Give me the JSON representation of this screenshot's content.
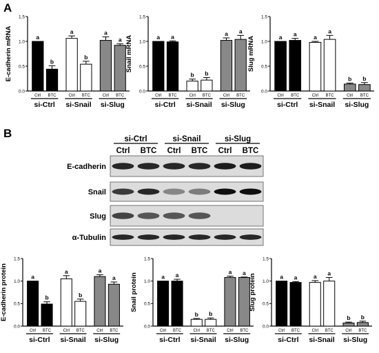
{
  "panel_labels": {
    "a": "A",
    "b": "B"
  },
  "blot": {
    "groups": [
      "si-Ctrl",
      "si-Snail",
      "si-Slug"
    ],
    "lanes": [
      "Ctrl",
      "BTC",
      "Ctrl",
      "BTC",
      "Ctrl",
      "BTC"
    ],
    "rows": [
      "E-cadherin",
      "Snail",
      "Slug",
      "α-Tubulin"
    ],
    "intensity": [
      [
        0.85,
        0.85,
        0.85,
        0.85,
        0.9,
        0.9
      ],
      [
        0.75,
        0.85,
        0.35,
        0.4,
        0.98,
        0.98
      ],
      [
        0.7,
        0.6,
        0.6,
        0.6,
        0.05,
        0.05
      ],
      [
        0.85,
        0.85,
        0.85,
        0.85,
        0.85,
        0.85
      ]
    ]
  },
  "chart_data": [
    {
      "type": "bar",
      "ylabel": "E-cadherin mRNA",
      "ylim": [
        0,
        1.5
      ],
      "yticks": [
        "0.0",
        "0.5",
        "1.0",
        "1.5"
      ],
      "categories": [
        "Ctrl",
        "BTC",
        "Ctrl",
        "BTC",
        "Ctrl",
        "BTC"
      ],
      "groups": [
        "si-Ctrl",
        "si-Snail",
        "si-Slug"
      ],
      "values": [
        1.0,
        0.44,
        1.06,
        0.54,
        1.02,
        0.92
      ],
      "errors": [
        0,
        0.07,
        0.05,
        0.06,
        0.07,
        0.03
      ],
      "letters": [
        "a",
        "b",
        "a",
        "b",
        "a",
        "a"
      ],
      "fills": [
        "#000000",
        "#000000",
        "#ffffff",
        "#ffffff",
        "#888888",
        "#888888"
      ]
    },
    {
      "type": "bar",
      "ylabel": "Snail mRNA",
      "ylim": [
        0,
        1.5
      ],
      "yticks": [
        "0.0",
        "0.5",
        "1.0",
        "1.5"
      ],
      "categories": [
        "Ctrl",
        "BTC",
        "Ctrl",
        "BTC",
        "Ctrl",
        "BTC"
      ],
      "groups": [
        "si-Ctrl",
        "si-Snail",
        "si-Slug"
      ],
      "values": [
        1.0,
        0.99,
        0.2,
        0.22,
        1.02,
        1.04
      ],
      "errors": [
        0,
        0.02,
        0.04,
        0.05,
        0.05,
        0.08
      ],
      "letters": [
        "a",
        "a",
        "b",
        "b",
        "a",
        "a"
      ],
      "fills": [
        "#000000",
        "#000000",
        "#ffffff",
        "#ffffff",
        "#888888",
        "#888888"
      ]
    },
    {
      "type": "bar",
      "ylabel": "Slug mRNA",
      "ylim": [
        0,
        1.5
      ],
      "yticks": [
        "0.0",
        "0.5",
        "1.0",
        "1.5"
      ],
      "categories": [
        "Ctrl",
        "BTC",
        "Ctrl",
        "BTC",
        "Ctrl",
        "BTC"
      ],
      "groups": [
        "si-Ctrl",
        "si-Snail",
        "si-Slug"
      ],
      "values": [
        1.0,
        1.02,
        0.98,
        1.04,
        0.14,
        0.13
      ],
      "errors": [
        0,
        0.04,
        0.02,
        0.08,
        0.02,
        0.04
      ],
      "letters": [
        "a",
        "a",
        "a",
        "a",
        "b",
        "b"
      ],
      "fills": [
        "#000000",
        "#000000",
        "#ffffff",
        "#ffffff",
        "#888888",
        "#888888"
      ]
    },
    {
      "type": "bar",
      "ylabel": "E-cadherin protein",
      "ylim": [
        0,
        1.5
      ],
      "yticks": [
        "0.0",
        "0.5",
        "1.0",
        "1.5"
      ],
      "categories": [
        "Ctrl",
        "BTC",
        "Ctrl",
        "BTC",
        "Ctrl",
        "BTC"
      ],
      "groups": [
        "si-Ctrl",
        "si-Snail",
        "si-Slug"
      ],
      "values": [
        1.0,
        0.49,
        1.05,
        0.55,
        1.1,
        0.93
      ],
      "errors": [
        0,
        0.05,
        0.07,
        0.05,
        0.04,
        0.05
      ],
      "letters": [
        "a",
        "b",
        "a",
        "b",
        "a",
        "a"
      ],
      "fills": [
        "#000000",
        "#000000",
        "#ffffff",
        "#ffffff",
        "#888888",
        "#888888"
      ]
    },
    {
      "type": "bar",
      "ylabel": "Snail protein",
      "ylim": [
        0,
        1.5
      ],
      "yticks": [
        "0.0",
        "0.5",
        "1.0",
        "1.5"
      ],
      "categories": [
        "Ctrl",
        "BTC",
        "Ctrl",
        "BTC",
        "Ctrl",
        "BTC"
      ],
      "groups": [
        "si-Ctrl",
        "si-Snail",
        "si-Slug"
      ],
      "values": [
        1.0,
        1.0,
        0.15,
        0.15,
        1.08,
        1.08
      ],
      "errors": [
        0,
        0.04,
        0.02,
        0.03,
        0.03,
        0.01
      ],
      "letters": [
        "a",
        "a",
        "b",
        "b",
        "a",
        "a"
      ],
      "fills": [
        "#000000",
        "#000000",
        "#ffffff",
        "#ffffff",
        "#888888",
        "#888888"
      ]
    },
    {
      "type": "bar",
      "ylabel": "Slug protein",
      "ylim": [
        0,
        1.5
      ],
      "yticks": [
        "0.0",
        "0.5",
        "1.0",
        "1.5"
      ],
      "categories": [
        "Ctrl",
        "BTC",
        "Ctrl",
        "BTC",
        "Ctrl",
        "BTC"
      ],
      "groups": [
        "si-Ctrl",
        "si-Snail",
        "si-Slug"
      ],
      "values": [
        1.0,
        0.97,
        0.97,
        1.0,
        0.07,
        0.08
      ],
      "errors": [
        0,
        0.02,
        0.04,
        0.08,
        0.02,
        0.03
      ],
      "letters": [
        "a",
        "a",
        "a",
        "a",
        "b",
        "b"
      ],
      "fills": [
        "#000000",
        "#000000",
        "#ffffff",
        "#ffffff",
        "#888888",
        "#888888"
      ]
    }
  ]
}
